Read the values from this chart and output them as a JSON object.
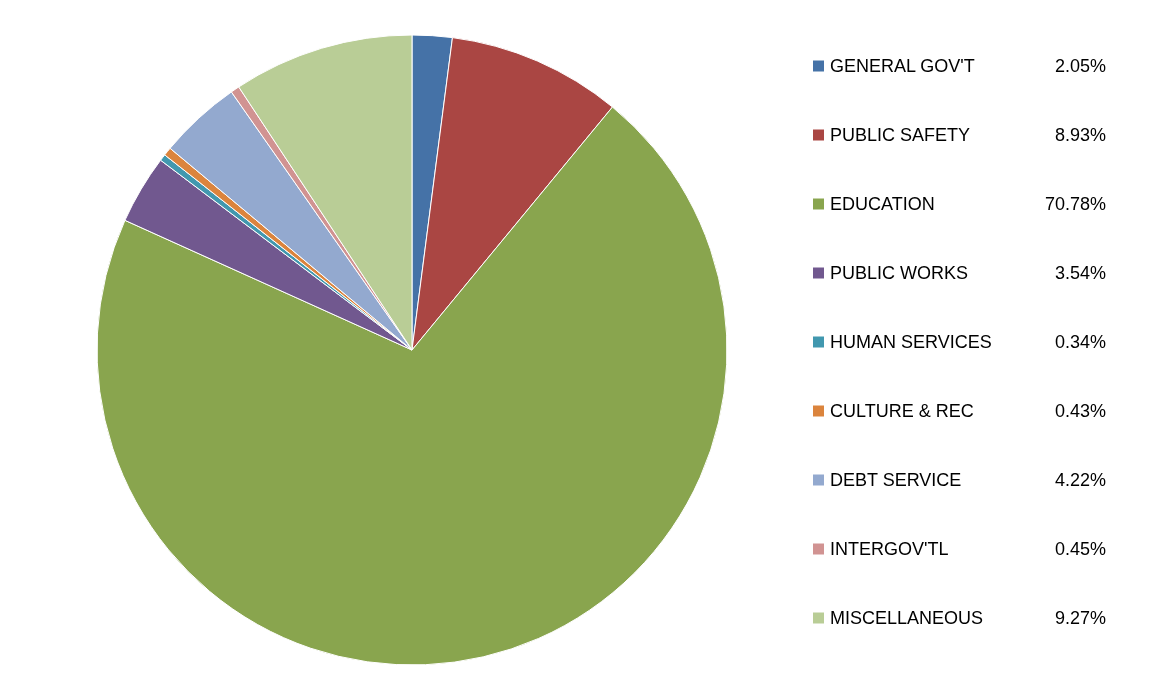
{
  "chart_data": {
    "type": "pie",
    "categories": [
      "GENERAL GOV'T",
      "PUBLIC SAFETY",
      "EDUCATION",
      "PUBLIC WORKS",
      "HUMAN SERVICES",
      "CULTURE & REC",
      "DEBT SERVICE",
      "INTERGOV'TL",
      "MISCELLANEOUS"
    ],
    "values": [
      2.05,
      8.93,
      70.78,
      3.54,
      0.34,
      0.43,
      4.22,
      0.45,
      9.27
    ],
    "colors": [
      "#4572a7",
      "#aa4643",
      "#89a54e",
      "#71588f",
      "#4198af",
      "#db843d",
      "#93a9cf",
      "#d19392",
      "#b9cd96"
    ],
    "value_labels": [
      "2.05%",
      "8.93%",
      "70.78%",
      "3.54%",
      "0.34%",
      "0.43%",
      "4.22%",
      "0.45%",
      "9.27%"
    ],
    "legend": "right"
  }
}
